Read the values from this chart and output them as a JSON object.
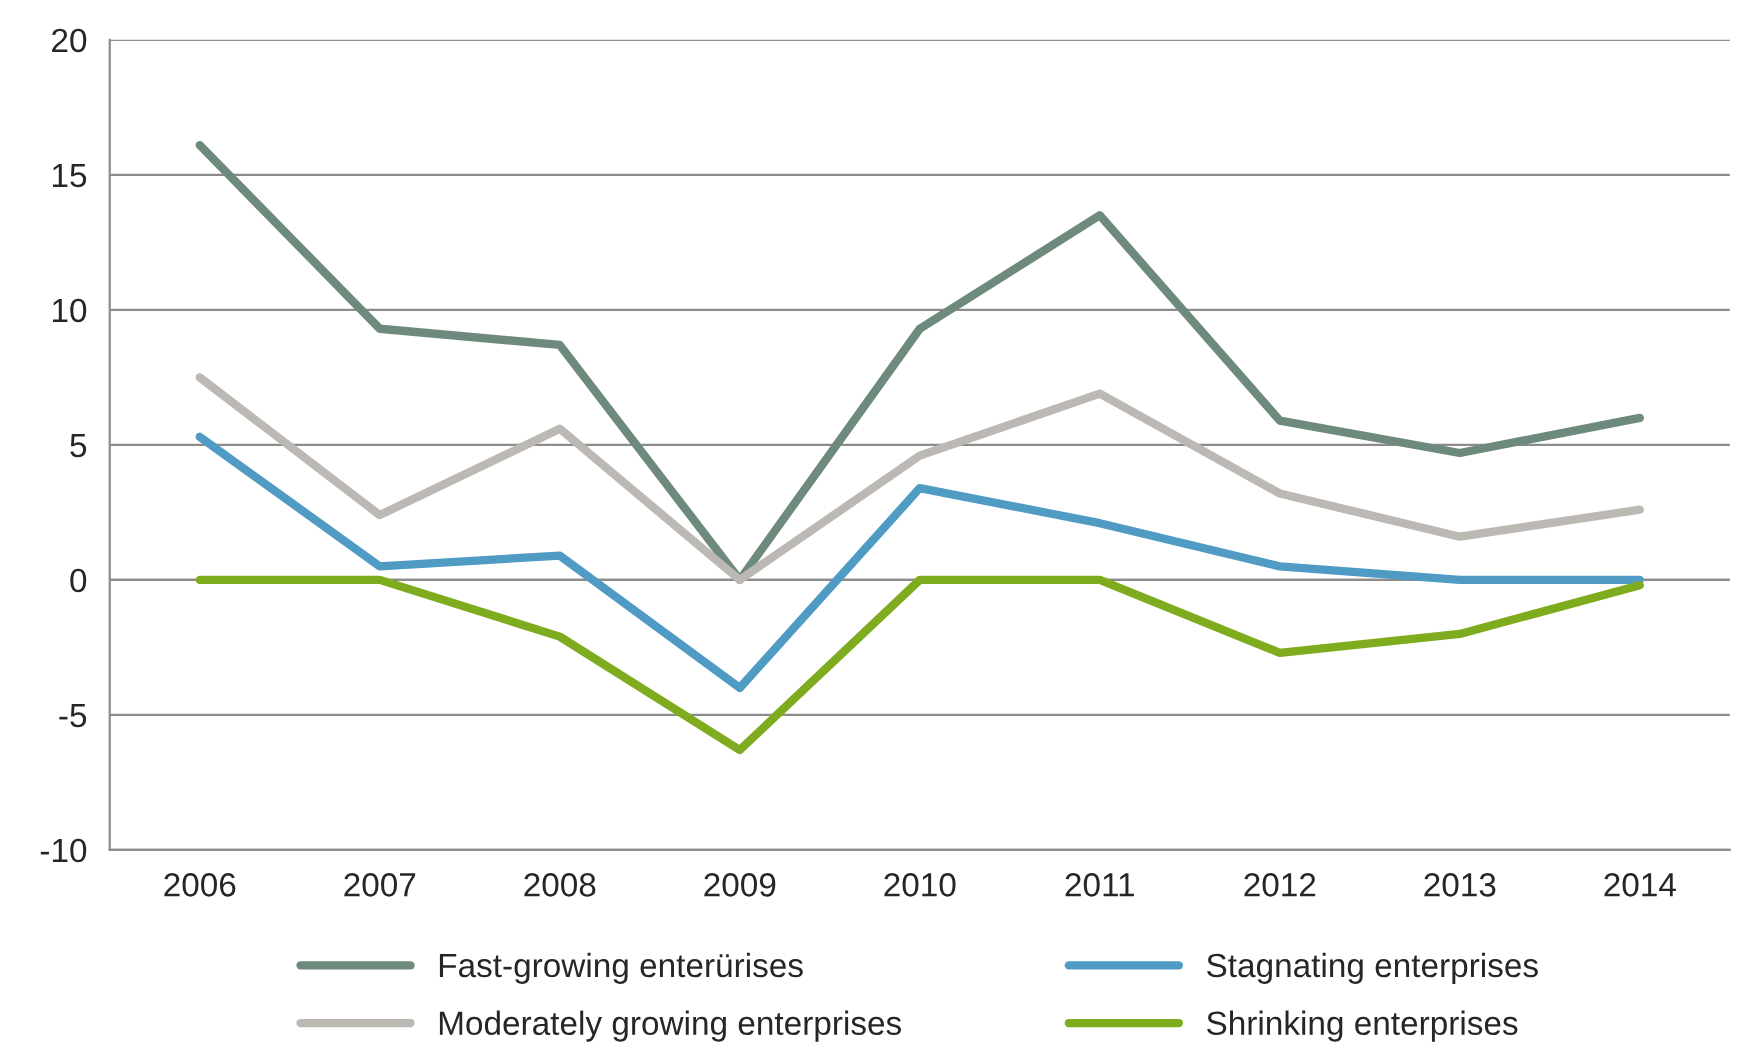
{
  "chart_data": {
    "type": "line",
    "categories": [
      "2006",
      "2007",
      "2008",
      "2009",
      "2010",
      "2011",
      "2012",
      "2013",
      "2014"
    ],
    "series": [
      {
        "name": "Fast-growing enterürises",
        "color": "#6e8a7c",
        "values": [
          16.1,
          9.3,
          8.7,
          0,
          9.3,
          13.5,
          5.9,
          4.7,
          6.0
        ]
      },
      {
        "name": "Moderately growing enterprises",
        "color": "#bcb8b4",
        "values": [
          7.5,
          2.4,
          5.6,
          0,
          4.6,
          6.9,
          3.2,
          1.6,
          2.6
        ]
      },
      {
        "name": "Stagnating enterprises",
        "color": "#4f9bc4",
        "values": [
          5.3,
          0.5,
          0.9,
          -4.0,
          3.4,
          2.1,
          0.5,
          0,
          0
        ]
      },
      {
        "name": "Shrinking enterprises",
        "color": "#7fab1e",
        "values": [
          0,
          0,
          -2.1,
          -6.3,
          0,
          0,
          -2.7,
          -2.0,
          -0.2
        ]
      }
    ],
    "ylim": [
      -10,
      20
    ],
    "yticks": [
      -10,
      -5,
      0,
      5,
      10,
      15,
      20
    ],
    "grid": "y",
    "legend": "bottom",
    "marker": "none",
    "line_style": "solid"
  }
}
